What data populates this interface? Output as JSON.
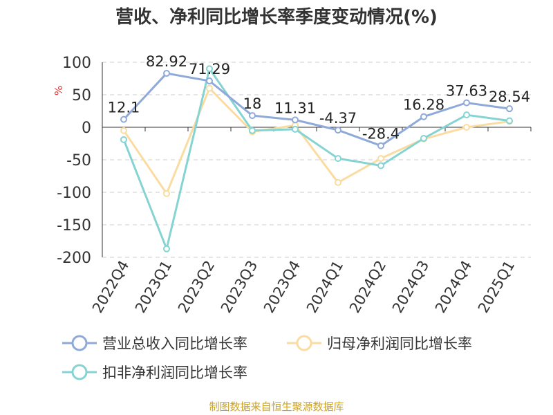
{
  "colors": {
    "revenue": "#8fa9d9",
    "net_profit": "#fadca0",
    "deducted_profit": "#85d3d3",
    "footer": "#c9a227",
    "ylabel": "#e03030"
  },
  "footer_text": "制图数据来自恒生聚源数据库",
  "chart_data": {
    "type": "line",
    "title": "营收、净利同比增长率季度变动情况(%)",
    "ylabel": "%",
    "ylim": [
      -200,
      100
    ],
    "yticks": [
      "100",
      "50",
      "0",
      "-50",
      "-100",
      "-150",
      "-200"
    ],
    "categories": [
      "2022Q4",
      "2023Q1",
      "2023Q2",
      "2023Q3",
      "2023Q4",
      "2024Q1",
      "2024Q2",
      "2024Q3",
      "2024Q4",
      "2025Q1"
    ],
    "grid": true,
    "legend_position": "bottom",
    "series": [
      {
        "name": "营业总收入同比增长率",
        "values": [
          12.1,
          82.92,
          71.29,
          18,
          11.31,
          -4.37,
          -28.4,
          16.28,
          37.63,
          28.54
        ],
        "labels": [
          "12.1",
          "82.92",
          "71.29",
          "18",
          "11.31",
          "-4.37",
          "-28.4",
          "16.28",
          "37.63",
          "28.54"
        ]
      },
      {
        "name": "归母净利润同比增长率",
        "values": [
          -5,
          -102,
          60,
          -7,
          3,
          -85,
          -48,
          -18,
          0,
          9
        ]
      },
      {
        "name": "扣非净利润同比增长率",
        "values": [
          -19,
          -187,
          90,
          -5,
          -3,
          -48,
          -59,
          -17,
          19,
          10
        ]
      }
    ]
  }
}
